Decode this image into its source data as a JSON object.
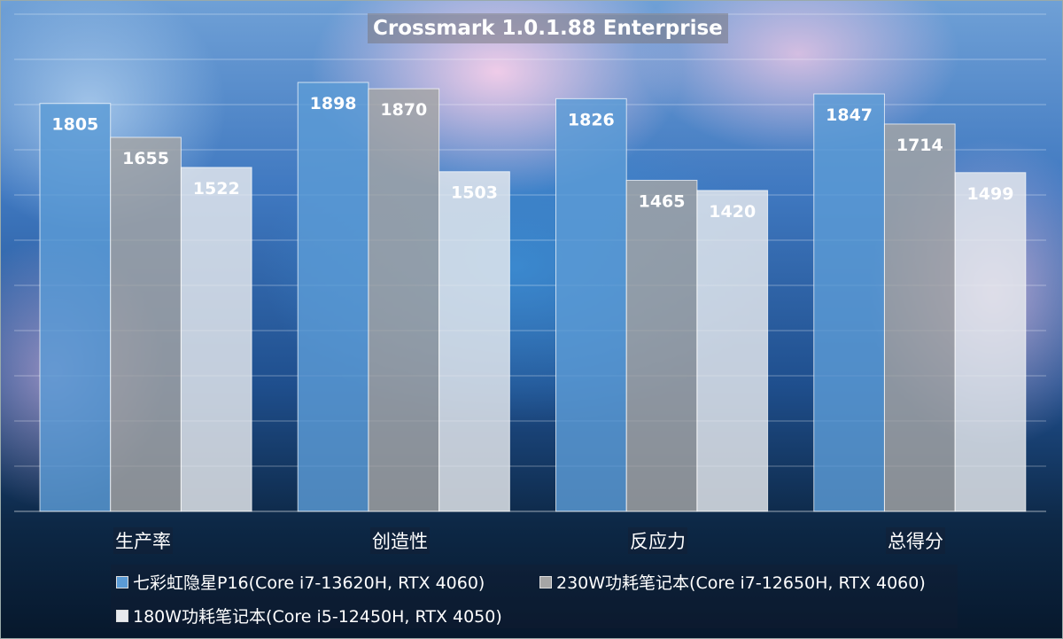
{
  "chart_data": {
    "type": "bar",
    "title": "Crossmark 1.0.1.88 Enterprise",
    "categories": [
      "生产率",
      "创造性",
      "反应力",
      "总得分"
    ],
    "series": [
      {
        "name": "七彩虹隐星P16(Core i7-13620H, RTX 4060)",
        "color": "#5b9bd5",
        "values": [
          1805,
          1898,
          1826,
          1847
        ]
      },
      {
        "name": "230W功耗笔记本(Core i7-12650H, RTX 4060)",
        "color": "#a5a5a5",
        "values": [
          1655,
          1870,
          1465,
          1714
        ]
      },
      {
        "name": "180W功耗笔记本(Core i5-12450H, RTX 4050)",
        "color": "#e8eaee",
        "values": [
          1522,
          1503,
          1420,
          1499
        ]
      }
    ],
    "xlabel": "",
    "ylabel": "",
    "ylim": [
      0,
      2200
    ],
    "grid": true,
    "gridStep": 200,
    "legend": "bottom"
  }
}
